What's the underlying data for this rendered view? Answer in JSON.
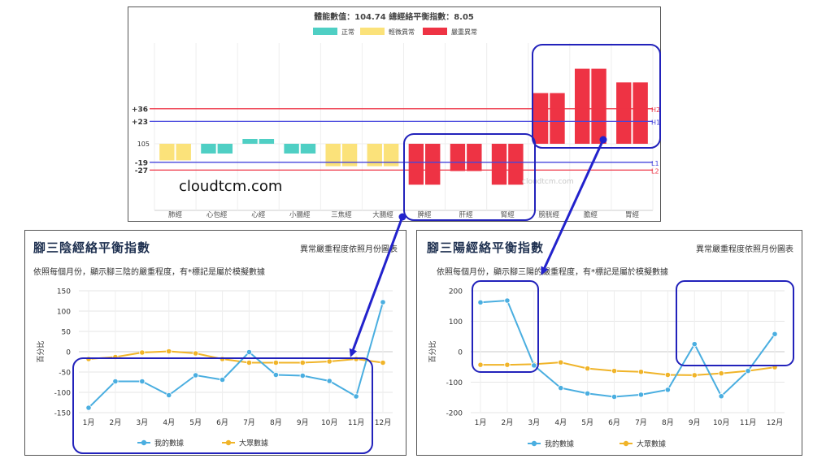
{
  "top_chart": {
    "title": "體能數值：104.74 總經絡平衡指數：8.05",
    "watermark_big": "cloudtcm.com",
    "watermark_small": "cloudtcm.com",
    "colors": {
      "normal": "#4fcfc4",
      "mild": "#fbe27a",
      "severe": "#ee3344",
      "line_h": "#ee3344",
      "line_l": "#4444dd"
    },
    "chart_data": {
      "type": "bar",
      "title": "體能數值：104.74 總經絡平衡指數：8.05",
      "categories": [
        "肺經",
        "心包經",
        "心經",
        "小腸經",
        "三焦經",
        "大腸經",
        "脾經",
        "肝經",
        "腎經",
        "膀胱經",
        "膽經",
        "胃經"
      ],
      "legend": [
        "正常",
        "輕微異常",
        "嚴重異常"
      ],
      "baseline": 105,
      "ylim": [
        -55,
        80
      ],
      "series": [
        {
          "name": "正常",
          "values": [
            null,
            -10,
            5,
            -10,
            null,
            null,
            null,
            null,
            null,
            null,
            null,
            null
          ]
        },
        {
          "name": "輕微異常",
          "values": [
            -17,
            null,
            null,
            null,
            -23,
            -23,
            null,
            null,
            null,
            null,
            null,
            null
          ]
        },
        {
          "name": "嚴重異常",
          "values": [
            null,
            null,
            null,
            null,
            null,
            null,
            -42,
            -28,
            -42,
            52,
            77,
            63
          ]
        }
      ],
      "reference_lines": [
        {
          "label": "+36",
          "value": 36,
          "tag": "H2",
          "color": "#ee3344"
        },
        {
          "label": "+23",
          "value": 23,
          "tag": "H1",
          "color": "#4444dd"
        },
        {
          "label": "-19",
          "value": -19,
          "tag": "L1",
          "color": "#4444dd"
        },
        {
          "label": "-27",
          "value": -27,
          "tag": "L2",
          "color": "#ee3344"
        }
      ],
      "baseline_label": "105"
    }
  },
  "left_chart": {
    "title": "腳三陰經絡平衡指數",
    "note": "異常嚴重程度依照月份圖表",
    "subtitle": "依照每個月份，顯示腳三陰的嚴重程度，有*標記是屬於模擬數據",
    "chart_data": {
      "type": "line",
      "categories": [
        "1月",
        "2月",
        "3月",
        "4月",
        "5月",
        "6月",
        "7月",
        "8月",
        "9月",
        "10月",
        "11月",
        "12月"
      ],
      "ylabel": "百分比",
      "ylim": [
        -150,
        150
      ],
      "yticks": [
        150,
        100,
        50,
        0,
        -50,
        -100,
        -150
      ],
      "series": [
        {
          "name": "我的數據",
          "color": "#4aaee0",
          "values": [
            -138,
            -73,
            -73,
            -107,
            -58,
            -69,
            -1,
            -57,
            -59,
            -72,
            -110,
            122
          ]
        },
        {
          "name": "大眾數據",
          "color": "#f0b429",
          "values": [
            -18,
            -13,
            -2,
            1,
            -4,
            -18,
            -27,
            -27,
            -27,
            -24,
            -18,
            -27
          ]
        }
      ]
    }
  },
  "right_chart": {
    "title": "腳三陽經絡平衡指數",
    "note": "異常嚴重程度依照月份圖表",
    "subtitle": "依照每個月份，顯示腳三陽的嚴重程度，有*標記是屬於模擬數據",
    "chart_data": {
      "type": "line",
      "categories": [
        "1月",
        "2月",
        "3月",
        "4月",
        "5月",
        "6月",
        "7月",
        "8月",
        "9月",
        "10月",
        "11月",
        "12月"
      ],
      "ylabel": "百分比",
      "ylim": [
        -200,
        200
      ],
      "yticks": [
        200,
        100,
        0,
        -100,
        -200
      ],
      "series": [
        {
          "name": "我的數據",
          "color": "#4aaee0",
          "values": [
            162,
            168,
            -45,
            -119,
            -137,
            -148,
            -141,
            -125,
            25,
            -146,
            -63,
            58
          ]
        },
        {
          "name": "大眾數據",
          "color": "#f0b429",
          "values": [
            -43,
            -43,
            -41,
            -35,
            -55,
            -63,
            -66,
            -76,
            -77,
            -71,
            -63,
            -51
          ]
        }
      ]
    }
  }
}
